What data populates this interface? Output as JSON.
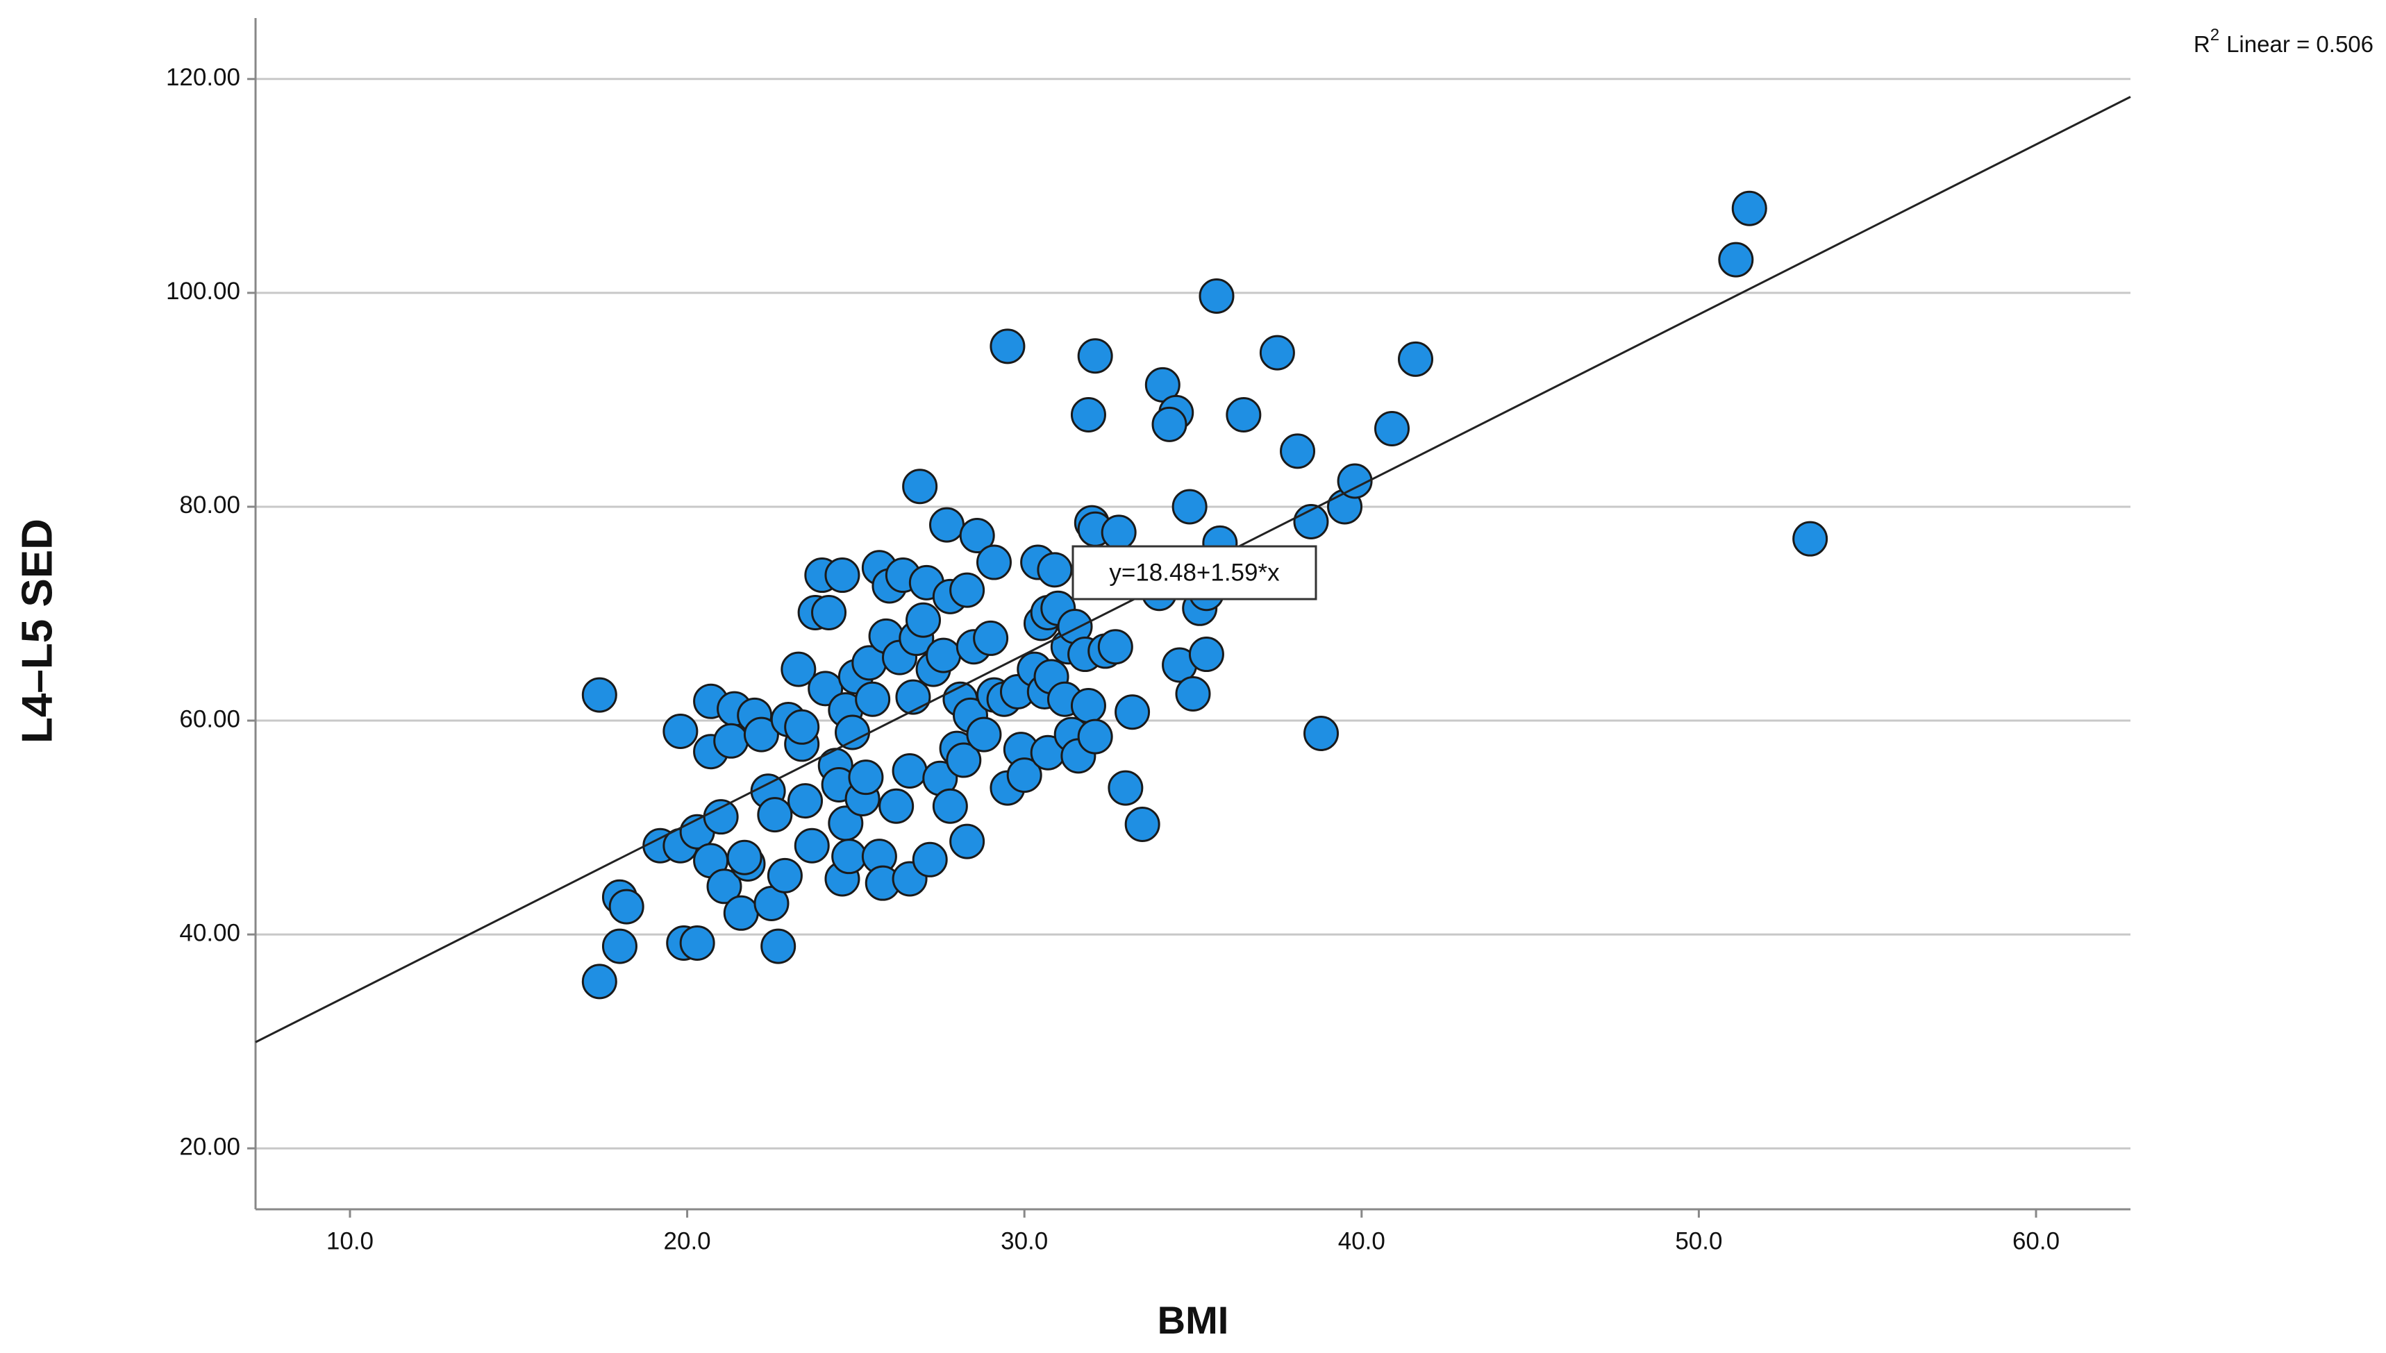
{
  "chart_data": {
    "type": "scatter",
    "x_label": "BMI",
    "y_label": "L4–L5 SED",
    "color": "#1f8fe3",
    "edge_color": "#1a1a1a",
    "grid": true,
    "xlim": [
      7.2,
      62.8
    ],
    "ylim": [
      14.3,
      125.7
    ],
    "xticks": [
      {
        "value": 10,
        "label": "10.0"
      },
      {
        "value": 20,
        "label": "20.0"
      },
      {
        "value": 30,
        "label": "30.0"
      },
      {
        "value": 40,
        "label": "40.0"
      },
      {
        "value": 50,
        "label": "50.0"
      },
      {
        "value": 60,
        "label": "60.0"
      }
    ],
    "yticks": [
      {
        "value": 20,
        "label": "20.00"
      },
      {
        "value": 40,
        "label": "40.00"
      },
      {
        "value": 60,
        "label": "60.00"
      },
      {
        "value": 80,
        "label": "80.00"
      },
      {
        "value": 100,
        "label": "100.00"
      },
      {
        "value": 120,
        "label": "120.00"
      }
    ],
    "fit_line": {
      "intercept": 18.48,
      "slope": 1.59,
      "label": "y=18.48+1.59*x"
    },
    "r2_annotation": {
      "text": "R",
      "superscript": "2",
      "rest": "Linear = 0.506"
    },
    "x": [
      17.4,
      17.4,
      18.0,
      18.0,
      18.2,
      19.2,
      19.8,
      19.8,
      19.9,
      20.3,
      20.3,
      20.7,
      20.7,
      21.0,
      20.7,
      21.1,
      21.4,
      21.3,
      21.6,
      21.8,
      21.7,
      22.0,
      22.2,
      22.4,
      22.6,
      22.5,
      22.7,
      22.9,
      23.0,
      23.3,
      23.4,
      23.4,
      23.5,
      23.7,
      23.8,
      24.0,
      24.2,
      24.1,
      24.4,
      24.5,
      24.6,
      24.7,
      24.6,
      24.7,
      24.8,
      24.9,
      25.0,
      25.2,
      25.3,
      25.4,
      25.5,
      25.7,
      25.7,
      25.8,
      25.9,
      26.0,
      26.2,
      26.3,
      26.4,
      26.6,
      26.7,
      26.6,
      26.8,
      26.9,
      27.0,
      27.2,
      27.1,
      27.3,
      27.5,
      27.6,
      27.7,
      27.8,
      27.8,
      28.0,
      28.1,
      28.2,
      28.3,
      28.3,
      28.4,
      28.5,
      28.6,
      28.8,
      29.0,
      29.1,
      29.1,
      29.4,
      29.5,
      29.5,
      29.8,
      29.9,
      30.0,
      30.3,
      30.4,
      30.5,
      30.6,
      30.7,
      30.7,
      30.8,
      30.9,
      31.0,
      31.2,
      31.3,
      31.4,
      31.5,
      31.6,
      31.8,
      31.9,
      31.9,
      32.0,
      32.1,
      32.1,
      32.1,
      32.4,
      32.7,
      32.8,
      33.0,
      33.2,
      33.5,
      34.0,
      34.1,
      34.5,
      34.3,
      34.6,
      34.9,
      35.0,
      35.2,
      35.4,
      35.4,
      35.7,
      35.8,
      36.5,
      37.5,
      38.1,
      38.5,
      38.8,
      39.5,
      39.8,
      40.9,
      41.6,
      51.1,
      51.5,
      53.3
    ],
    "values": [
      62.4,
      35.6,
      38.9,
      43.5,
      42.6,
      48.3,
      48.3,
      59.0,
      39.2,
      39.2,
      49.6,
      61.8,
      57.1,
      51.0,
      46.9,
      44.5,
      61.1,
      58.1,
      42.0,
      46.6,
      47.2,
      60.5,
      58.7,
      53.4,
      51.2,
      42.9,
      38.9,
      45.5,
      60.1,
      64.8,
      57.8,
      59.4,
      52.5,
      48.3,
      70.1,
      73.6,
      70.1,
      63.0,
      55.8,
      54.0,
      73.6,
      61.0,
      45.2,
      50.4,
      47.3,
      58.9,
      64.1,
      52.7,
      54.7,
      65.4,
      62.0,
      74.3,
      47.3,
      44.8,
      67.9,
      72.6,
      52.0,
      65.9,
      73.6,
      45.2,
      62.2,
      55.3,
      67.7,
      81.9,
      69.4,
      47.0,
      72.9,
      64.8,
      54.6,
      66.1,
      78.3,
      71.6,
      52.0,
      57.4,
      62.0,
      56.3,
      72.2,
      48.7,
      60.5,
      66.9,
      77.3,
      58.7,
      67.7,
      74.8,
      62.4,
      62.0,
      95.0,
      53.7,
      62.7,
      57.3,
      54.9,
      64.8,
      74.8,
      69.1,
      62.7,
      57.0,
      70.1,
      64.1,
      74.1,
      70.5,
      62.0,
      66.9,
      58.7,
      68.8,
      56.7,
      66.2,
      61.4,
      88.6,
      78.5,
      94.1,
      77.9,
      58.5,
      66.5,
      66.9,
      77.6,
      53.7,
      60.8,
      50.3,
      71.9,
      91.4,
      88.8,
      87.7,
      65.2,
      80.0,
      62.5,
      70.5,
      66.2,
      71.9,
      99.7,
      76.6,
      88.6,
      94.4,
      85.2,
      78.6,
      58.8,
      80.0,
      82.4,
      87.3,
      93.8,
      103.1,
      107.9,
      77.0
    ]
  }
}
